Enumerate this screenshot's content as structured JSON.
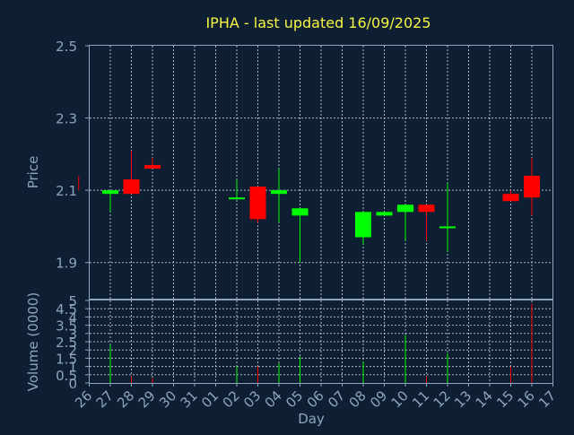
{
  "chart_data": {
    "type": "candlestick",
    "title": "IPHA - last updated 16/09/2025",
    "xlabel": "Day",
    "ylabel": "Price",
    "volume_label": "Volume (0000)",
    "categories": [
      "26",
      "27",
      "28",
      "29",
      "30",
      "31",
      "01",
      "02",
      "03",
      "04",
      "05",
      "06",
      "07",
      "08",
      "09",
      "10",
      "11",
      "12",
      "13",
      "14",
      "15",
      "16",
      "17"
    ],
    "price_ylim": [
      1.8,
      2.5
    ],
    "price_yticks": [
      {
        "value": 1.9,
        "label": "1.9"
      },
      {
        "value": 2.1,
        "label": "2.1"
      },
      {
        "value": 2.3,
        "label": "2.3"
      },
      {
        "value": 2.5,
        "label": "2.5"
      }
    ],
    "volume_ylim": [
      0,
      5
    ],
    "volume_yticks": [
      {
        "value": 0,
        "label": "0"
      },
      {
        "value": 0.5,
        "label": "0.5"
      },
      {
        "value": 1,
        "label": "1"
      },
      {
        "value": 1.5,
        "label": "1.5"
      },
      {
        "value": 2,
        "label": "2"
      },
      {
        "value": 2.5,
        "label": "2.5"
      },
      {
        "value": 3,
        "label": "3"
      },
      {
        "value": 3.5,
        "label": "3.5"
      },
      {
        "value": 4,
        "label": "4"
      },
      {
        "value": 4.5,
        "label": "4.5"
      },
      {
        "value": 5,
        "label": "5"
      }
    ],
    "grid": true,
    "up_color": "#00ff00",
    "down_color": "#ff0000",
    "candles": [
      {
        "x": 25.5,
        "open": 2.14,
        "close": 2.1,
        "high": 2.14,
        "low": 2.1,
        "volume": 0.0
      },
      {
        "x": 27,
        "open": 2.09,
        "close": 2.1,
        "high": 2.1,
        "low": 2.04,
        "volume": 2.3
      },
      {
        "x": 28,
        "open": 2.13,
        "close": 2.09,
        "high": 2.21,
        "low": 2.09,
        "volume": 0.4
      },
      {
        "x": 29,
        "open": 2.17,
        "close": 2.16,
        "high": 2.19,
        "low": 2.16,
        "volume": 0.3
      },
      {
        "x": 33,
        "open": 2.08,
        "close": 2.08,
        "high": 2.13,
        "low": 2.08,
        "volume": 1.0
      },
      {
        "x": 34,
        "open": 2.11,
        "close": 2.02,
        "high": 2.11,
        "low": 2.01,
        "volume": 1.0
      },
      {
        "x": 35,
        "open": 2.09,
        "close": 2.1,
        "high": 2.16,
        "low": 2.01,
        "volume": 1.2
      },
      {
        "x": 36,
        "open": 2.03,
        "close": 2.05,
        "high": 2.05,
        "low": 1.9,
        "volume": 1.6
      },
      {
        "x": 39,
        "open": 1.97,
        "close": 2.04,
        "high": 2.04,
        "low": 1.95,
        "volume": 1.3
      },
      {
        "x": 40,
        "open": 2.03,
        "close": 2.04,
        "high": 2.04,
        "low": 2.03,
        "volume": 0.0
      },
      {
        "x": 41,
        "open": 2.04,
        "close": 2.06,
        "high": 2.06,
        "low": 1.96,
        "volume": 2.9
      },
      {
        "x": 42,
        "open": 2.06,
        "close": 2.04,
        "high": 2.06,
        "low": 1.96,
        "volume": 0.4
      },
      {
        "x": 43,
        "open": 2.0,
        "close": 2.0,
        "high": 2.12,
        "low": 1.93,
        "volume": 1.8
      },
      {
        "x": 46,
        "open": 2.09,
        "close": 2.07,
        "high": 2.1,
        "low": 2.07,
        "volume": 1.0
      },
      {
        "x": 47,
        "open": 2.14,
        "close": 2.08,
        "high": 2.19,
        "low": 2.03,
        "volume": 4.8
      }
    ]
  }
}
